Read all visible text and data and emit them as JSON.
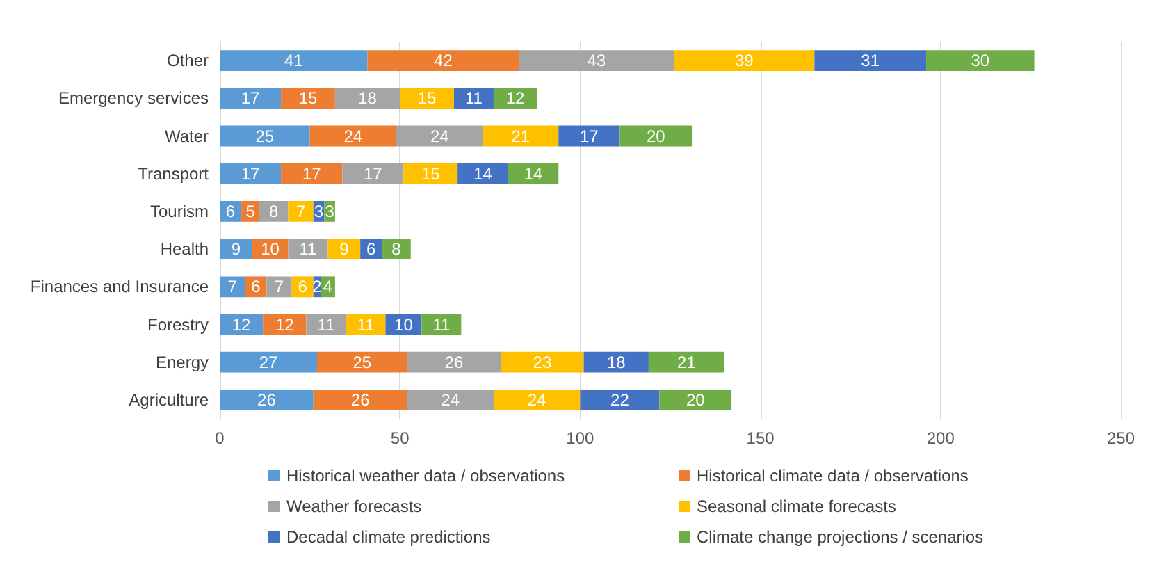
{
  "chart_data": {
    "type": "bar",
    "orientation": "horizontal",
    "stacked": true,
    "data_labels": true,
    "grid": "x",
    "legend": "bottom",
    "categories": [
      "Other",
      "Emergency services",
      "Water",
      "Transport",
      "Tourism",
      "Health",
      "Finances and Insurance",
      "Forestry",
      "Energy",
      "Agriculture"
    ],
    "xlim": [
      0,
      250
    ],
    "xticks": [
      0,
      50,
      100,
      150,
      200,
      250
    ],
    "series": [
      {
        "name": "Historical weather data / observations",
        "color": "#5b9bd5",
        "values": [
          41,
          17,
          25,
          17,
          6,
          9,
          7,
          12,
          27,
          26
        ]
      },
      {
        "name": "Historical climate data / observations",
        "color": "#ed7d31",
        "values": [
          42,
          15,
          24,
          17,
          5,
          10,
          6,
          12,
          25,
          26
        ]
      },
      {
        "name": "Weather forecasts",
        "color": "#a5a5a5",
        "values": [
          43,
          18,
          24,
          17,
          8,
          11,
          7,
          11,
          26,
          24
        ]
      },
      {
        "name": "Seasonal climate forecasts",
        "color": "#ffc000",
        "values": [
          39,
          15,
          21,
          15,
          7,
          9,
          6,
          11,
          23,
          24
        ]
      },
      {
        "name": "Decadal climate predictions",
        "color": "#4472c4",
        "values": [
          31,
          11,
          17,
          14,
          3,
          6,
          2,
          10,
          18,
          22
        ]
      },
      {
        "name": "Climate change projections / scenarios",
        "color": "#70ad47",
        "values": [
          30,
          12,
          20,
          14,
          3,
          8,
          4,
          11,
          21,
          20
        ]
      }
    ]
  }
}
